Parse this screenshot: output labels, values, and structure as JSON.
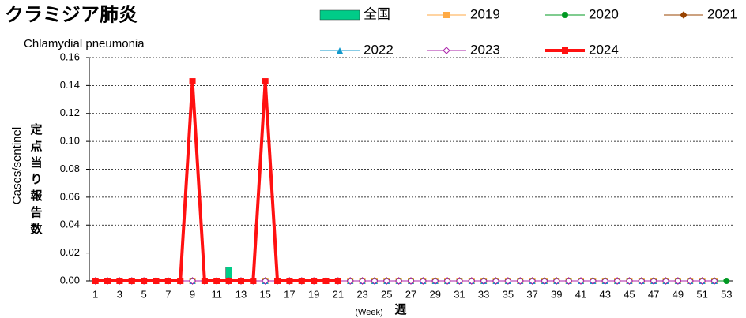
{
  "chart_data": {
    "type": "line",
    "title": "クラミジア肺炎",
    "subtitle": "Chlamydial pneumonia",
    "y_label": "Cases/sentinel",
    "y_label_ja": "定点当り報告数",
    "x_label": "週",
    "x_label_en": "(Week)",
    "categories": [
      "1",
      null,
      "3",
      null,
      "5",
      null,
      "7",
      null,
      "9",
      null,
      "11",
      null,
      "13",
      null,
      "15",
      null,
      "17",
      null,
      "19",
      null,
      "21",
      null,
      "23",
      null,
      "25",
      null,
      "27",
      null,
      "29",
      null,
      "31",
      null,
      "33",
      null,
      "35",
      null,
      "37",
      null,
      "39",
      null,
      "41",
      null,
      "43",
      null,
      "45",
      null,
      "47",
      null,
      "49",
      null,
      "51",
      null,
      "53"
    ],
    "ylim": [
      0,
      0.16
    ],
    "yticks": [
      {
        "value": 0,
        "label": "0.00"
      },
      0.02,
      0.04,
      0.06,
      0.08,
      {
        "value": 0.1,
        "label": "0.10"
      },
      0.12,
      0.14,
      0.16
    ],
    "grid": true,
    "series": [
      {
        "name": "全国",
        "type": "bar",
        "color": "#00cc88",
        "values": [
          0,
          0,
          0,
          0,
          0,
          0,
          0,
          0,
          0,
          0,
          0,
          0.01,
          0,
          0,
          0,
          0,
          0,
          0,
          0,
          0,
          0,
          null,
          null,
          null,
          null,
          null,
          null,
          null,
          null,
          null,
          null,
          null,
          null,
          null,
          null,
          null,
          null,
          null,
          null,
          null,
          null,
          null,
          null,
          null,
          null,
          null,
          null,
          null,
          null,
          null,
          null,
          null,
          null
        ]
      },
      {
        "name": "2019",
        "color": "#ffaa44",
        "marker": "square",
        "values": [
          0,
          0,
          0,
          0,
          0,
          0,
          0,
          0,
          0,
          0,
          0,
          0,
          0,
          0,
          0,
          0,
          0,
          0,
          0,
          0,
          0,
          0,
          0,
          0,
          0,
          0,
          0,
          0,
          0,
          0,
          0,
          0,
          0,
          0,
          0,
          0,
          0,
          0,
          0,
          0,
          0,
          0,
          0,
          0,
          0,
          0,
          0,
          0,
          0,
          0,
          0,
          0,
          null
        ]
      },
      {
        "name": "2020",
        "color": "#009922",
        "marker": "circle",
        "values": [
          0,
          0,
          0,
          0,
          0,
          0,
          0,
          0,
          0,
          0,
          0,
          0,
          0,
          0,
          0,
          0,
          0,
          0,
          0,
          0,
          0,
          0,
          0,
          0,
          0,
          0,
          0,
          0,
          0,
          0,
          0,
          0,
          0,
          0,
          0,
          0,
          0,
          0,
          0,
          0,
          0,
          0,
          0,
          0,
          0,
          0,
          0,
          0,
          0,
          0,
          0,
          0,
          0
        ]
      },
      {
        "name": "2021",
        "color": "#994400",
        "marker": "diamond",
        "values": [
          0,
          0,
          0,
          0,
          0,
          0,
          0,
          0,
          0,
          0,
          0,
          0,
          0,
          0,
          0,
          0,
          0,
          0,
          0,
          0,
          0,
          0,
          0,
          0,
          0,
          0,
          0,
          0,
          0,
          0,
          0,
          0,
          0,
          0,
          0,
          0,
          0,
          0,
          0,
          0,
          0,
          0,
          0,
          0,
          0,
          0,
          0,
          0,
          0,
          0,
          0,
          0,
          null
        ]
      },
      {
        "name": "2022",
        "color": "#1199cc",
        "marker": "triangle",
        "values": [
          0,
          0,
          0,
          0,
          0,
          0,
          0,
          0,
          0,
          0,
          0,
          0,
          0,
          0,
          0,
          0,
          0,
          0,
          0,
          0,
          0,
          0,
          0,
          0,
          0,
          0,
          0,
          0,
          0,
          0,
          0,
          0,
          0,
          0,
          0,
          0,
          0,
          0,
          0,
          0,
          0,
          0,
          0,
          0,
          0,
          0,
          0,
          0,
          0,
          0,
          0,
          0,
          null
        ]
      },
      {
        "name": "2023",
        "color": "#aa22aa",
        "marker": "diamond-open",
        "values": [
          0,
          0,
          0,
          0,
          0,
          0,
          0,
          0,
          0,
          0,
          0,
          0,
          0,
          0,
          0,
          0,
          0,
          0,
          0,
          0,
          0,
          0,
          0,
          0,
          0,
          0,
          0,
          0,
          0,
          0,
          0,
          0,
          0,
          0,
          0,
          0,
          0,
          0,
          0,
          0,
          0,
          0,
          0,
          0,
          0,
          0,
          0,
          0,
          0,
          0,
          0,
          0,
          null
        ]
      },
      {
        "name": "2024",
        "color": "#ff1111",
        "marker": "square",
        "width": 4,
        "values": [
          0,
          0,
          0,
          0,
          0,
          0,
          0,
          0,
          0.143,
          0,
          0,
          0,
          0,
          0,
          0.143,
          0,
          0,
          0,
          0,
          0,
          0,
          null,
          null,
          null,
          null,
          null,
          null,
          null,
          null,
          null,
          null,
          null,
          null,
          null,
          null,
          null,
          null,
          null,
          null,
          null,
          null,
          null,
          null,
          null,
          null,
          null,
          null,
          null,
          null,
          null,
          null,
          null,
          null
        ]
      }
    ]
  }
}
